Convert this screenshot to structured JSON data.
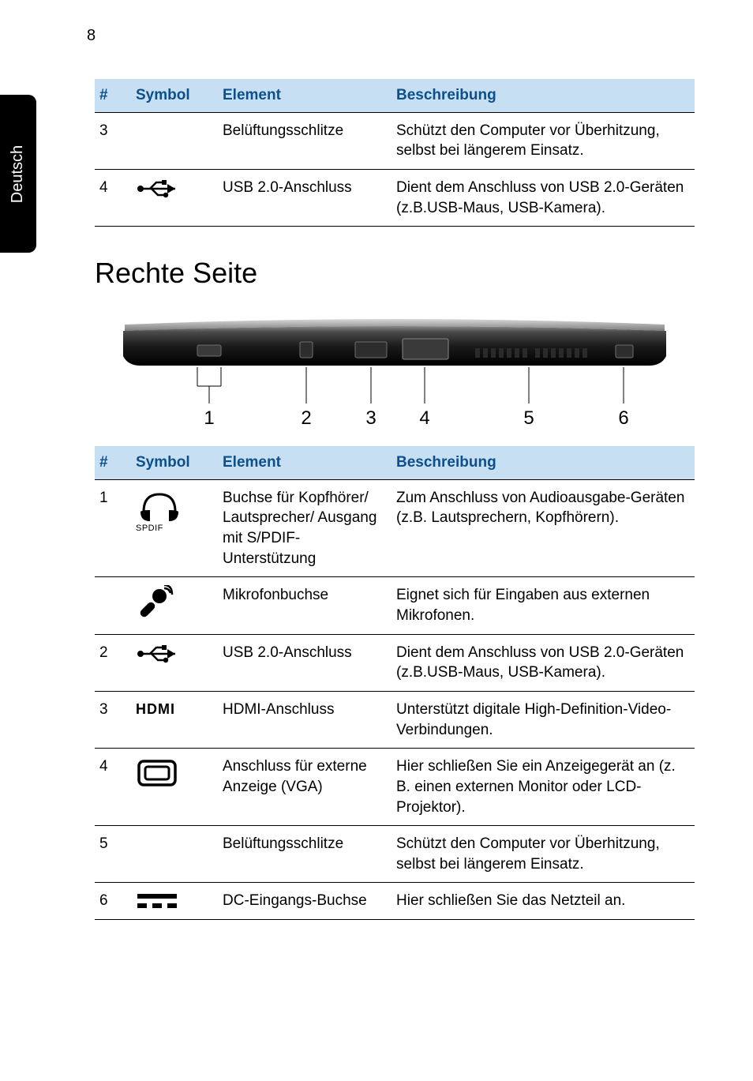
{
  "page_number": "8",
  "side_tab_label": "Deutsch",
  "colors": {
    "header_text": "#0b4f8c",
    "header_bg": "#c7dff2",
    "rule": "#000000",
    "text": "#000000",
    "side_tab_bg": "#000000",
    "side_tab_fg": "#ffffff"
  },
  "top_table": {
    "columns": {
      "num": "#",
      "symbol": "Symbol",
      "element": "Element",
      "desc": "Beschreibung"
    },
    "rows": [
      {
        "num": "3",
        "symbol_icon": null,
        "element": "Belüftungsschlitze",
        "desc": "Schützt den Computer vor Überhitzung, selbst bei längerem Einsatz."
      },
      {
        "num": "4",
        "symbol_icon": "usb",
        "element": "USB 2.0-Anschluss",
        "desc": "Dient dem Anschluss von USB 2.0-Geräten (z.B.USB-Maus, USB-Kamera)."
      }
    ]
  },
  "section_title": "Rechte Seite",
  "figure": {
    "callouts": [
      "1",
      "2",
      "3",
      "4",
      "5",
      "6"
    ]
  },
  "bottom_table": {
    "columns": {
      "num": "#",
      "symbol": "Symbol",
      "element": "Element",
      "desc": "Beschreibung"
    },
    "rows": [
      {
        "num": "1",
        "symbol_icon": "headphone-spdif",
        "element": "Buchse für Kopfhörer/ Lautsprecher/ Ausgang mit S/PDIF-Unterstützung",
        "desc": "Zum Anschluss von Audioausgabe-Geräten (z.B. Lautsprechern, Kopfhörern)."
      },
      {
        "num": "",
        "symbol_icon": "mic",
        "element": "Mikrofonbuchse",
        "desc": "Eignet sich für Eingaben aus externen Mikrofonen."
      },
      {
        "num": "2",
        "symbol_icon": "usb",
        "element": "USB 2.0-Anschluss",
        "desc": "Dient dem Anschluss von USB 2.0-Geräten (z.B.USB-Maus, USB-Kamera)."
      },
      {
        "num": "3",
        "symbol_icon": "hdmi",
        "element": "HDMI-Anschluss",
        "desc": "Unterstützt digitale High-Definition-Video-Verbindungen."
      },
      {
        "num": "4",
        "symbol_icon": "vga",
        "element": "Anschluss für externe Anzeige (VGA)",
        "desc": "Hier schließen Sie ein Anzeigegerät an (z. B. einen externen Monitor oder LCD-Projektor)."
      },
      {
        "num": "5",
        "symbol_icon": null,
        "element": "Belüftungsschlitze",
        "desc": "Schützt den Computer vor Überhitzung, selbst bei längerem Einsatz."
      },
      {
        "num": "6",
        "symbol_icon": "dc",
        "element": "DC-Eingangs-Buchse",
        "desc": "Hier schließen Sie das Netzteil an."
      }
    ]
  }
}
